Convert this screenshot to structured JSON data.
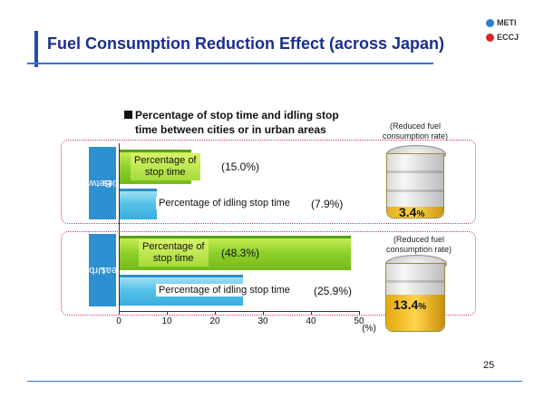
{
  "header": {
    "title": "Fuel Consumption Reduction Effect (across Japan)",
    "logos": [
      {
        "label": "METI",
        "color": "#2a7fd4"
      },
      {
        "label": "ECCJ",
        "color": "#d8262a"
      }
    ]
  },
  "heading": {
    "line1": "Percentage of stop time and idling stop",
    "line2": "time between cities or in urban areas"
  },
  "chart_data": {
    "type": "bar",
    "orientation": "horizontal",
    "title": "Percentage of stop time and idling stop time between cities or in urban areas",
    "categories": [
      "Between cities",
      "Urban areas"
    ],
    "series": [
      {
        "name": "Percentage of stop time",
        "values": [
          15.0,
          48.3
        ],
        "color": "#8fd02a"
      },
      {
        "name": "Percentage of idling stop time",
        "values": [
          7.9,
          25.9
        ],
        "color": "#56c1e8"
      }
    ],
    "xlim": [
      0,
      50
    ],
    "xticks": [
      "0",
      "10",
      "20",
      "30",
      "40",
      "50"
    ],
    "xlabel": "(%)",
    "grid": false
  },
  "value_labels": {
    "stop_city": "(15.0%)",
    "idle_city": "(7.9%)",
    "stop_urban": "(48.3%)",
    "idle_urban": "(25.9%)"
  },
  "bar_text": {
    "stop_line1": "Percentage of",
    "stop_line2": "stop time",
    "idle": "Percentage of idling stop time"
  },
  "groups": {
    "city_line1": "Between",
    "city_line2": "cities",
    "urban_line1": "Urban",
    "urban_line2": "areas"
  },
  "fuel_reduction": {
    "label_line1": "(Reduced fuel",
    "label_line2": "consumption rate)",
    "city_value": "3.4",
    "urban_value": "13.4",
    "unit": "%"
  },
  "page_number": "25"
}
